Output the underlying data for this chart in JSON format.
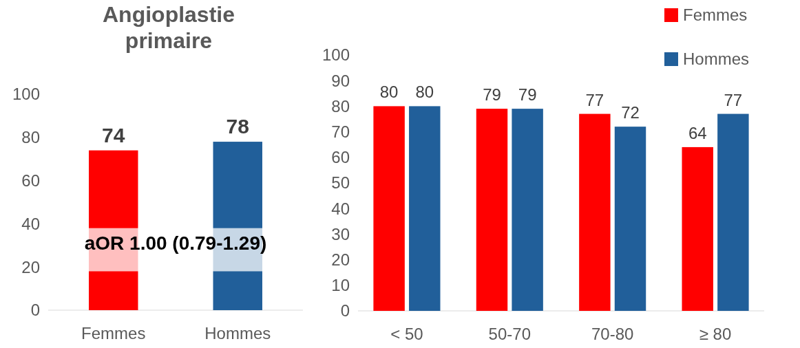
{
  "chart_data": [
    {
      "type": "bar",
      "title": "Angioplastie primaire",
      "categories": [
        "Femmes",
        "Hommes"
      ],
      "values": [
        74,
        78
      ],
      "colors": [
        "#ff0000",
        "#215f9a"
      ],
      "ylim": [
        0,
        100
      ],
      "yticks": [
        0,
        20,
        40,
        60,
        80,
        100
      ],
      "grid": false,
      "data_labels": true,
      "annotations": [
        "aOR 1.00 (0.79-1.29)"
      ]
    },
    {
      "type": "bar",
      "categories": [
        "< 50",
        "50-70",
        "70-80",
        "≥ 80"
      ],
      "series": [
        {
          "name": "Femmes",
          "color": "#ff0000",
          "values": [
            80,
            79,
            77,
            64
          ]
        },
        {
          "name": "Hommes",
          "color": "#215f9a",
          "values": [
            80,
            79,
            72,
            77
          ]
        }
      ],
      "ylim": [
        0,
        100
      ],
      "yticks": [
        0,
        10,
        20,
        30,
        40,
        50,
        60,
        70,
        80,
        90,
        100
      ],
      "grid": false,
      "data_labels": true,
      "legend": "top right"
    }
  ]
}
